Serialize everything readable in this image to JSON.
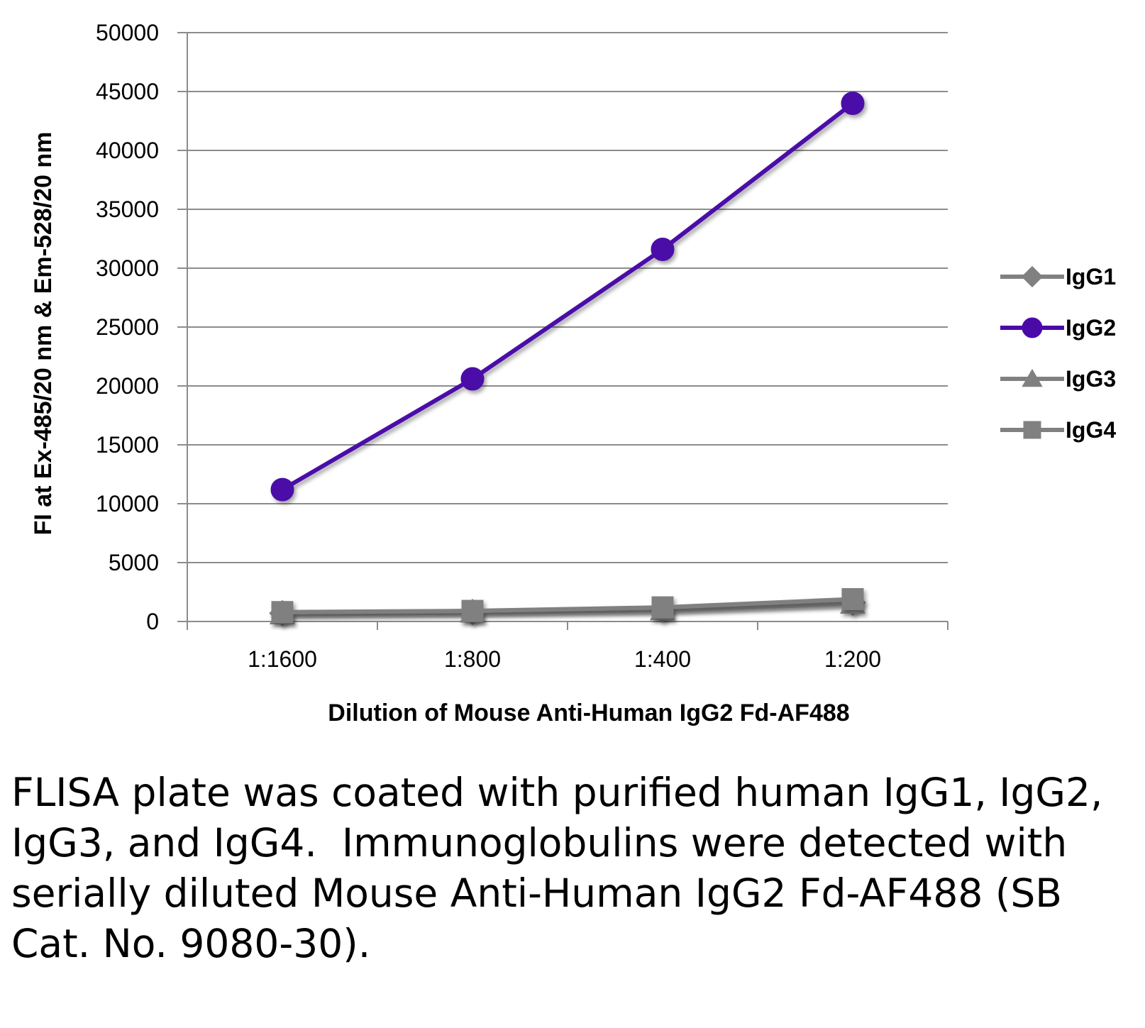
{
  "chart_data": {
    "type": "line",
    "categories": [
      "1:1600",
      "1:800",
      "1:400",
      "1:200"
    ],
    "xlabel": "Dilution of Mouse Anti-Human IgG2 Fd-AF488",
    "ylabel": "FI at Ex-485/20 nm & Em-528/20 nm",
    "ylim": [
      0,
      50000
    ],
    "yticks": [
      0,
      5000,
      10000,
      15000,
      20000,
      25000,
      30000,
      35000,
      40000,
      45000,
      50000
    ],
    "grid": true,
    "legend_position": "right",
    "series": [
      {
        "name": "IgG1",
        "marker": "diamond",
        "color": "#808080",
        "values": [
          700,
          800,
          1000,
          1600
        ]
      },
      {
        "name": "IgG2",
        "marker": "circle",
        "color": "#4B0AA8",
        "values": [
          11200,
          20600,
          31600,
          44000
        ]
      },
      {
        "name": "IgG3",
        "marker": "triangle",
        "color": "#808080",
        "values": [
          600,
          750,
          950,
          1500
        ]
      },
      {
        "name": "IgG4",
        "marker": "square",
        "color": "#808080",
        "values": [
          800,
          900,
          1200,
          1900
        ]
      }
    ]
  },
  "caption": "FLISA plate was coated with purified human IgG1, IgG2, IgG3, and IgG4.  Immunoglobulins were detected with serially diluted Mouse Anti-Human IgG2 Fd-AF488 (SB Cat. No. 9080-30)."
}
